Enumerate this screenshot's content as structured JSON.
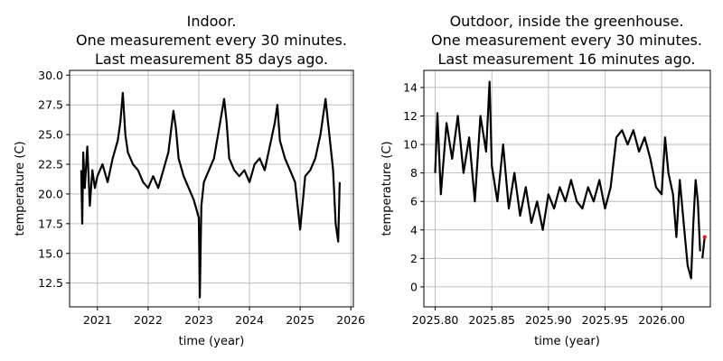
{
  "chart_data": [
    {
      "type": "line",
      "title_lines": [
        "Indoor.",
        "One measurement every 30 minutes.",
        "Last measurement 85 days ago."
      ],
      "xlabel": "time  (year)",
      "ylabel": "temperature  (C)",
      "xlim": [
        2020.45,
        2026.05
      ],
      "ylim": [
        10.5,
        30.4
      ],
      "xticks": [
        2021,
        2022,
        2023,
        2024,
        2025,
        2026
      ],
      "xtick_labels": [
        "2021",
        "2022",
        "2023",
        "2024",
        "2025",
        "2026"
      ],
      "yticks": [
        12.5,
        15.0,
        17.5,
        20.0,
        22.5,
        25.0,
        27.5,
        30.0
      ],
      "ytick_labels": [
        "12.5",
        "15.0",
        "17.5",
        "20.0",
        "22.5",
        "25.0",
        "27.5",
        "30.0"
      ],
      "grid": true,
      "line_color": "#000000",
      "series": [
        {
          "x": [
            2020.68,
            2020.7,
            2020.72,
            2020.75,
            2020.8,
            2020.85,
            2020.9,
            2020.95,
            2021.0,
            2021.1,
            2021.2,
            2021.3,
            2021.4,
            2021.45,
            2021.5,
            2021.55,
            2021.6,
            2021.7,
            2021.8,
            2021.9,
            2022.0,
            2022.1,
            2022.2,
            2022.3,
            2022.4,
            2022.5,
            2022.55,
            2022.6,
            2022.7,
            2022.8,
            2022.9,
            2023.0,
            2023.02,
            2023.05,
            2023.1,
            2023.2,
            2023.3,
            2023.4,
            2023.5,
            2023.55,
            2023.6,
            2023.7,
            2023.8,
            2023.9,
            2024.0,
            2024.1,
            2024.2,
            2024.3,
            2024.4,
            2024.5,
            2024.55,
            2024.6,
            2024.7,
            2024.8,
            2024.9,
            2025.0,
            2025.1,
            2025.2,
            2025.3,
            2025.4,
            2025.5,
            2025.55,
            2025.6,
            2025.65,
            2025.7,
            2025.75,
            2025.78
          ],
          "y": [
            22.0,
            17.5,
            23.5,
            20.5,
            24.0,
            19.0,
            22.0,
            20.5,
            21.5,
            22.5,
            21.0,
            23.0,
            24.5,
            26.0,
            28.5,
            25.0,
            23.5,
            22.5,
            22.0,
            21.0,
            20.5,
            21.5,
            20.5,
            22.0,
            23.5,
            27.0,
            25.5,
            23.0,
            21.5,
            20.5,
            19.5,
            18.0,
            11.3,
            19.0,
            21.0,
            22.0,
            23.0,
            25.5,
            28.0,
            26.0,
            23.0,
            22.0,
            21.5,
            22.0,
            21.0,
            22.5,
            23.0,
            22.0,
            24.0,
            26.0,
            27.5,
            24.5,
            23.0,
            22.0,
            21.0,
            17.0,
            21.5,
            22.0,
            23.0,
            25.0,
            28.0,
            26.0,
            24.0,
            22.0,
            17.5,
            16.0,
            21.0
          ]
        }
      ]
    },
    {
      "type": "line",
      "title_lines": [
        "Outdoor, inside the greenhouse.",
        "One measurement every 30 minutes.",
        "Last measurement 16 minutes ago."
      ],
      "xlabel": "time (year)",
      "ylabel": "temperature  (C)",
      "xlim": [
        2025.79,
        2026.043
      ],
      "ylim": [
        -1.4,
        15.2
      ],
      "xticks": [
        2025.8,
        2025.85,
        2025.9,
        2025.95,
        2026.0
      ],
      "xtick_labels": [
        "2025.80",
        "2025.85",
        "2025.90",
        "2025.95",
        "2026.00"
      ],
      "yticks": [
        0,
        2,
        4,
        6,
        8,
        10,
        12,
        14
      ],
      "ytick_labels": [
        "0",
        "2",
        "4",
        "6",
        "8",
        "10",
        "12",
        "14"
      ],
      "grid": true,
      "line_color": "#000000",
      "last_point_color": "#d62728",
      "series": [
        {
          "x": [
            2025.8,
            2025.802,
            2025.805,
            2025.81,
            2025.815,
            2025.82,
            2025.825,
            2025.83,
            2025.835,
            2025.84,
            2025.845,
            2025.848,
            2025.85,
            2025.855,
            2025.86,
            2025.865,
            2025.87,
            2025.875,
            2025.88,
            2025.885,
            2025.89,
            2025.895,
            2025.9,
            2025.905,
            2025.91,
            2025.915,
            2025.92,
            2025.925,
            2025.93,
            2025.935,
            2025.94,
            2025.945,
            2025.95,
            2025.955,
            2025.96,
            2025.965,
            2025.97,
            2025.975,
            2025.98,
            2025.985,
            2025.99,
            2025.995,
            2026.0,
            2026.003,
            2026.006,
            2026.01,
            2026.013,
            2026.016,
            2026.02,
            2026.023,
            2026.026,
            2026.028,
            2026.03,
            2026.032,
            2026.034
          ],
          "y": [
            8.0,
            12.2,
            6.5,
            11.5,
            9.0,
            12.0,
            8.0,
            10.5,
            6.0,
            12.0,
            9.5,
            14.4,
            8.5,
            6.0,
            10.0,
            5.5,
            8.0,
            5.0,
            7.0,
            4.5,
            6.0,
            4.0,
            6.5,
            5.5,
            7.0,
            6.0,
            7.5,
            6.0,
            5.5,
            7.0,
            6.0,
            7.5,
            5.5,
            7.0,
            10.5,
            11.0,
            10.0,
            11.0,
            9.5,
            10.5,
            9.0,
            7.0,
            6.5,
            10.5,
            8.0,
            6.5,
            3.5,
            7.5,
            4.0,
            1.5,
            0.6,
            4.5,
            7.5,
            6.0,
            2.5
          ]
        },
        {
          "name": "",
          "x": [
            2026.036,
            2026.038
          ],
          "y": [
            2.0,
            3.5
          ]
        }
      ]
    }
  ]
}
